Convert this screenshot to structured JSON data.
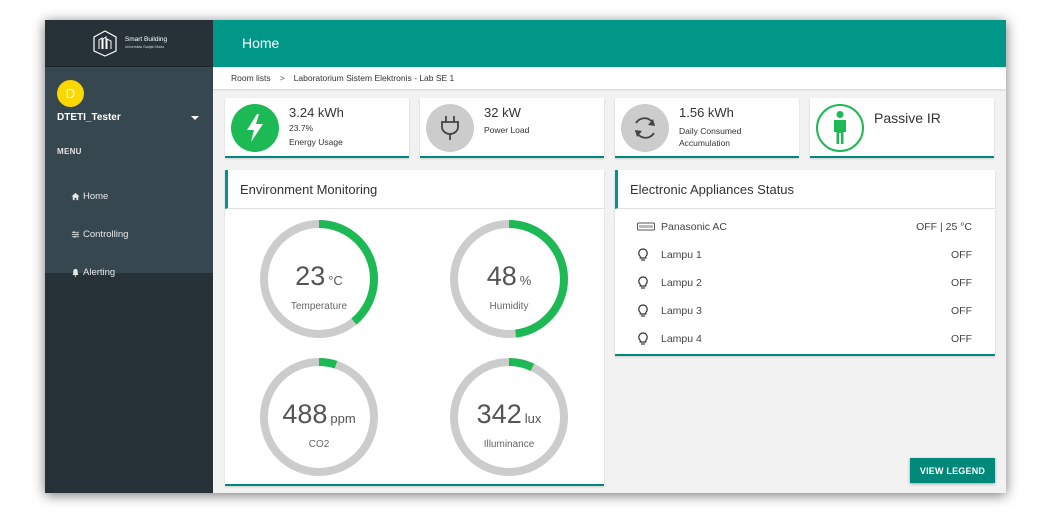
{
  "brand": {
    "title": "Smart Building",
    "subtitle": "Universitas Gadjah Mada"
  },
  "user": {
    "initial": "D",
    "name": "DTETI_Tester"
  },
  "sidebar": {
    "menu_heading": "MENU",
    "items": [
      {
        "icon": "home-icon",
        "label": "Home"
      },
      {
        "icon": "sliders-icon",
        "label": "Controlling"
      },
      {
        "icon": "bell-icon",
        "label": "Alerting"
      }
    ]
  },
  "header": {
    "title": "Home"
  },
  "breadcrumb": {
    "root": "Room lists",
    "separator": ">",
    "current": "Laboratorium Sistem Elektronis - Lab SE 1"
  },
  "stats": [
    {
      "icon": "lightning-icon",
      "value": "3.24 kWh",
      "line1": "23.7%",
      "line2": "Energy Usage",
      "color": "#1db954"
    },
    {
      "icon": "plug-icon",
      "value": "32 kW",
      "line1": "Power Load",
      "color": "#cccccc"
    },
    {
      "icon": "refresh-icon",
      "value": "1.56 kWh",
      "line1": "Daily Consumed",
      "line2": "Accumulation",
      "color": "#cccccc"
    },
    {
      "icon": "person-icon",
      "value": "Passive IR",
      "color": "#1db954"
    }
  ],
  "environment": {
    "title": "Environment Monitoring",
    "gauges": [
      {
        "value": "23",
        "unit": "°C",
        "label": "Temperature",
        "fraction": 0.39
      },
      {
        "value": "48",
        "unit": "%",
        "label": "Humidity",
        "fraction": 0.48
      },
      {
        "value": "488",
        "unit": "ppm",
        "label": "CO2",
        "fraction": 0.05
      },
      {
        "value": "342",
        "unit": "lux",
        "label": "Illuminance",
        "fraction": 0.07
      }
    ]
  },
  "appliances": {
    "title": "Electronic Appliances Status",
    "items": [
      {
        "icon": "ac-icon",
        "name": "Panasonic AC",
        "status": "OFF | 25 °C"
      },
      {
        "icon": "lightbulb-icon",
        "name": "Lampu 1",
        "status": "OFF"
      },
      {
        "icon": "lightbulb-icon",
        "name": "Lampu 2",
        "status": "OFF"
      },
      {
        "icon": "lightbulb-icon",
        "name": "Lampu 3",
        "status": "OFF"
      },
      {
        "icon": "lightbulb-icon",
        "name": "Lampu 4",
        "status": "OFF"
      }
    ]
  },
  "legend_button": {
    "label": "VIEW LEGEND"
  },
  "colors": {
    "accent": "#009688",
    "gauge_fill": "#1db954",
    "gauge_track": "#cccccc",
    "sidebar": "#263238"
  }
}
